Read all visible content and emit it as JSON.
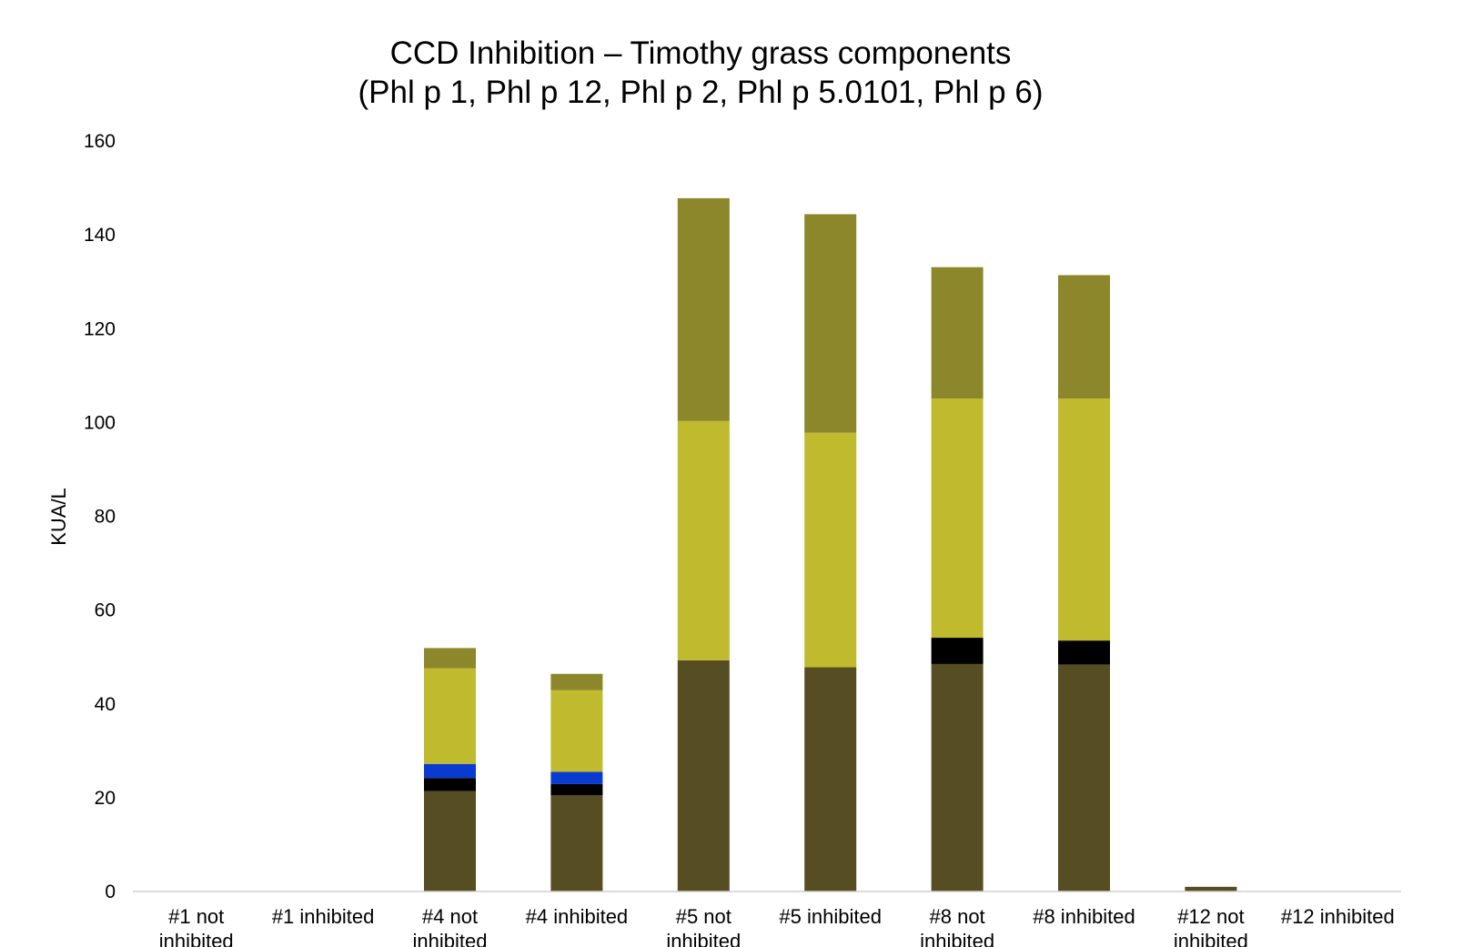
{
  "chart_data": {
    "type": "bar",
    "stacked": true,
    "title_lines": [
      "CCD Inhibition – Timothy grass components",
      "(Phl p 1, Phl p 12, Phl p 2, Phl p 5.0101, Phl p 6)"
    ],
    "ylabel": "KUA/L",
    "xlabel": "",
    "ylim": [
      0,
      160
    ],
    "yticks": [
      0,
      20,
      40,
      60,
      80,
      100,
      120,
      140,
      160
    ],
    "grid": false,
    "legend": "none",
    "categories": [
      [
        "#1 not",
        "inhibited"
      ],
      [
        "#1 inhibited"
      ],
      [
        "#4 not",
        "inhibited"
      ],
      [
        "#4 inhibited"
      ],
      [
        "#5 not",
        "inhibited"
      ],
      [
        "#5 inhibited"
      ],
      [
        "#8 not",
        "inhibited"
      ],
      [
        "#8 inhibited"
      ],
      [
        "#12 not",
        "inhibited"
      ],
      [
        "#12 inhibited"
      ]
    ],
    "series": [
      {
        "color": "#574d22",
        "values": [
          0,
          0,
          21.4,
          20.5,
          49.3,
          47.8,
          48.5,
          48.4,
          1.0,
          0
        ]
      },
      {
        "color": "#000000",
        "values": [
          0,
          0,
          2.8,
          2.4,
          0,
          0,
          5.6,
          5.1,
          0,
          0
        ]
      },
      {
        "color": "#0a3ad0",
        "values": [
          0,
          0,
          3.0,
          2.6,
          0,
          0,
          0,
          0,
          0,
          0
        ]
      },
      {
        "color": "#c0ba2e",
        "values": [
          0,
          0,
          20.4,
          17.4,
          51.0,
          50.0,
          51.0,
          51.6,
          0,
          0
        ]
      },
      {
        "color": "#8c872a",
        "values": [
          0,
          0,
          4.3,
          3.5,
          47.5,
          46.6,
          28.0,
          26.3,
          0,
          0
        ]
      }
    ]
  }
}
